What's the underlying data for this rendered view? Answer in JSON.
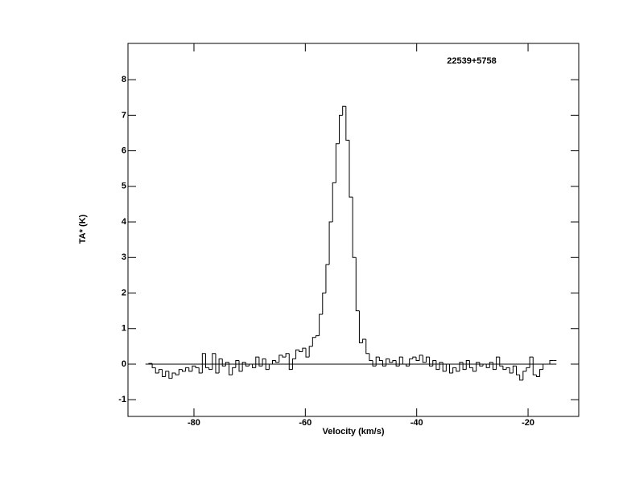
{
  "chart_data": {
    "type": "step",
    "title": "22539+5758",
    "xlabel": "Velocity (km/s)",
    "ylabel": "TA* (K)",
    "x": [
      -88.4,
      -87.8,
      -87.2,
      -86.6,
      -86.0,
      -85.4,
      -84.8,
      -84.2,
      -83.6,
      -83.0,
      -82.4,
      -81.8,
      -81.2,
      -80.6,
      -80.0,
      -79.4,
      -78.8,
      -78.2,
      -77.6,
      -77.0,
      -76.4,
      -75.8,
      -75.2,
      -74.6,
      -74.0,
      -73.4,
      -72.8,
      -72.2,
      -71.6,
      -71.0,
      -70.4,
      -69.8,
      -69.2,
      -68.6,
      -68.0,
      -67.4,
      -66.8,
      -66.2,
      -65.6,
      -65.0,
      -64.4,
      -63.8,
      -63.2,
      -62.6,
      -62.0,
      -61.4,
      -60.8,
      -60.2,
      -59.6,
      -59.0,
      -58.4,
      -57.8,
      -57.2,
      -56.6,
      -56.0,
      -55.4,
      -54.8,
      -54.2,
      -53.6,
      -53.0,
      -52.4,
      -51.8,
      -51.2,
      -50.6,
      -50.0,
      -49.4,
      -48.8,
      -48.2,
      -47.6,
      -47.0,
      -46.4,
      -45.8,
      -45.2,
      -44.6,
      -44.0,
      -43.4,
      -42.8,
      -42.2,
      -41.6,
      -41.0,
      -40.4,
      -39.8,
      -39.2,
      -38.6,
      -38.0,
      -37.4,
      -36.8,
      -36.2,
      -35.6,
      -35.0,
      -34.4,
      -33.8,
      -33.2,
      -32.6,
      -32.0,
      -31.4,
      -30.8,
      -30.2,
      -29.6,
      -29.0,
      -28.4,
      -27.8,
      -27.2,
      -26.6,
      -26.0,
      -25.4,
      -24.8,
      -24.2,
      -23.6,
      -23.0,
      -22.4,
      -21.8,
      -21.2,
      -20.6,
      -20.0,
      -19.4,
      -18.8,
      -18.2,
      -17.6,
      -17.0,
      -16.4,
      -15.8,
      -15.2
    ],
    "values": [
      0.0,
      0.02,
      -0.1,
      -0.25,
      -0.15,
      -0.35,
      -0.2,
      -0.4,
      -0.25,
      -0.3,
      -0.15,
      -0.2,
      -0.1,
      -0.2,
      -0.05,
      -0.1,
      -0.25,
      0.3,
      -0.1,
      -0.15,
      0.3,
      -0.25,
      0.15,
      -0.05,
      0.05,
      -0.3,
      -0.1,
      0.1,
      -0.2,
      0.05,
      -0.05,
      0.0,
      -0.1,
      0.2,
      -0.05,
      0.15,
      -0.15,
      0.0,
      0.1,
      0.05,
      0.25,
      0.2,
      0.3,
      -0.15,
      0.15,
      0.4,
      0.35,
      0.45,
      0.2,
      0.5,
      0.75,
      0.8,
      1.4,
      2.0,
      2.8,
      4.0,
      5.1,
      6.2,
      7.0,
      7.25,
      6.3,
      4.7,
      3.0,
      1.5,
      0.6,
      0.7,
      0.3,
      0.1,
      -0.05,
      0.2,
      0.1,
      -0.05,
      0.15,
      0.05,
      0.1,
      -0.05,
      0.2,
      0.0,
      -0.05,
      0.15,
      0.2,
      0.1,
      0.25,
      0.05,
      0.2,
      -0.05,
      0.1,
      -0.15,
      0.05,
      -0.2,
      0.0,
      -0.25,
      -0.1,
      -0.2,
      0.05,
      -0.15,
      0.1,
      -0.1,
      -0.2,
      0.05,
      -0.05,
      0.0,
      -0.1,
      0.05,
      -0.15,
      0.2,
      -0.05,
      -0.15,
      -0.1,
      -0.25,
      -0.05,
      -0.3,
      -0.45,
      -0.2,
      -0.1,
      0.2,
      -0.3,
      -0.35,
      -0.15,
      0.0,
      0.0,
      0.1,
      0.1
    ],
    "color": "#000000",
    "xlim": [
      -91.85,
      -10.9
    ],
    "ylim": [
      -1.47,
      9.02
    ],
    "xticks": [
      -80,
      -60,
      -40,
      -20
    ],
    "yticks": [
      -1,
      0,
      1,
      2,
      3,
      4,
      5,
      6,
      7,
      8
    ]
  }
}
